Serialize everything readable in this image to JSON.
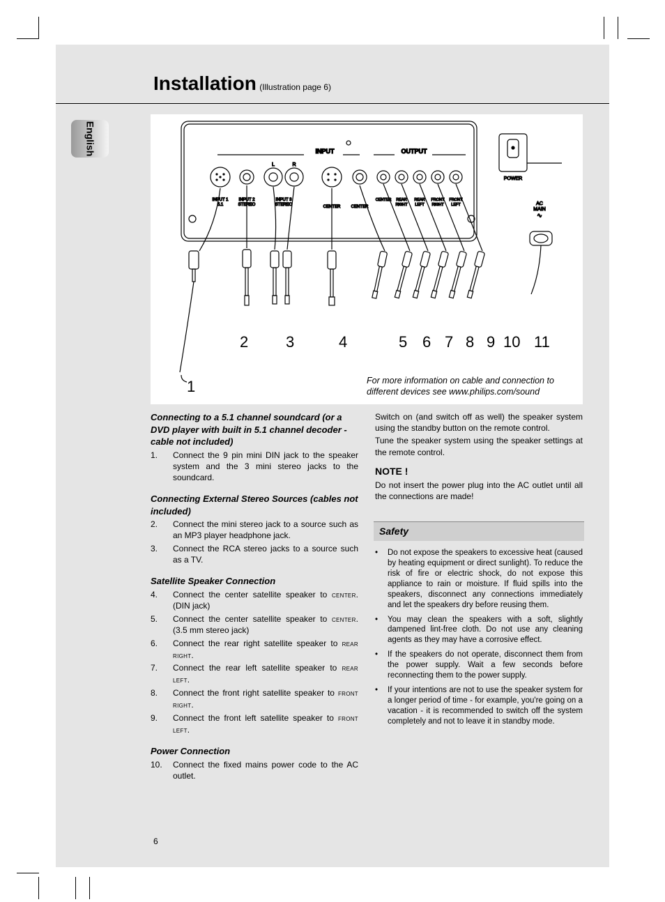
{
  "page": {
    "title_main": "Installation",
    "title_sub": "(Illustration page 6)",
    "language_tab": "English",
    "page_number": "6",
    "colors": {
      "page_bg": "#e5e5e5",
      "diagram_bg": "#ffffff",
      "safety_head_bg": "#cfcfcf",
      "text": "#000000"
    }
  },
  "diagram": {
    "labels": {
      "input": "INPUT",
      "output": "OUTPUT",
      "power": "POWER",
      "ac_main": "AC\nMAIN",
      "input1": "INPUT 1\n5.1",
      "input2": "INPUT 2\nSTEREO",
      "input3": "INPUT 3\nSTEREO",
      "center_l": "L",
      "center_r": "R",
      "center": "CENTER",
      "out_center": "CENTER",
      "out_rr": "REAR\nRIGHT",
      "out_rl": "REAR\nLEFT",
      "out_fr": "FRONT\nRIGHT",
      "out_fl": "FRONT\nLEFT"
    },
    "callouts": [
      "1",
      "2",
      "3",
      "4",
      "5",
      "6",
      "7",
      "8",
      "9",
      "10",
      "11"
    ],
    "note": "For more information on cable and connection to different devices see www.philips.com/sound"
  },
  "left_column": {
    "sec1_heading": "Connecting to a 5.1 channel soundcard (or a DVD player with built in 5.1 channel decoder - cable not included)",
    "sec1_items": [
      {
        "n": "1.",
        "t": "Connect the 9 pin mini DIN jack to the speaker system and the 3 mini stereo jacks to the soundcard."
      }
    ],
    "sec2_heading": "Connecting External Stereo Sources (cables not included)",
    "sec2_items": [
      {
        "n": "2.",
        "t": "Connect the mini stereo jack to a source such as an MP3 player headphone jack."
      },
      {
        "n": "3.",
        "t": "Connect the RCA stereo jacks to a source such as a TV."
      }
    ],
    "sec3_heading": "Satellite Speaker Connection",
    "sec3_items": [
      {
        "n": "4.",
        "t_pre": "Connect the center satellite speaker to ",
        "sc": "center",
        "t_post": ". (DIN jack)"
      },
      {
        "n": "5.",
        "t_pre": "Connect the center satellite speaker to ",
        "sc": "center",
        "t_post": ". (3.5 mm stereo jack)"
      },
      {
        "n": "6.",
        "t_pre": "Connect the rear right satellite speaker to ",
        "sc": "rear right",
        "t_post": "."
      },
      {
        "n": "7.",
        "t_pre": "Connect the rear left satellite speaker to ",
        "sc": "rear left",
        "t_post": "."
      },
      {
        "n": "8.",
        "t_pre": "Connect the front right satellite speaker to ",
        "sc": "front right",
        "t_post": "."
      },
      {
        "n": "9.",
        "t_pre": "Connect the front left satellite speaker to ",
        "sc": "front left",
        "t_post": "."
      }
    ],
    "sec4_heading": "Power Connection",
    "sec4_items": [
      {
        "n": "10.",
        "t": "Connect the fixed mains power code to the AC outlet."
      }
    ]
  },
  "right_column": {
    "intro_p1": "Switch on (and switch off as well) the speaker system using the standby button on the remote control.",
    "intro_p2": "Tune the speaker system using the speaker settings at the remote control.",
    "note_heading": "NOTE !",
    "note_body": "Do not insert the power plug into the AC outlet until all the connections are made!",
    "safety_heading": "Safety",
    "safety_items": [
      "Do not expose the speakers to excessive heat (caused by heating equipment or direct sunlight). To reduce the risk of fire or electric shock, do not expose this appliance to rain or moisture. If fluid spills into the speakers, disconnect any connections immediately and let the speakers dry before reusing them.",
      "You may clean the speakers with a soft, slightly dampened lint-free cloth. Do not use any cleaning agents as they may have a corrosive effect.",
      "If the speakers do not operate, disconnect them from the power supply. Wait a few seconds before reconnecting them to the power supply.",
      "If your intentions are not to use the speaker system for a longer period of time - for example, you're going on a vacation - it is recommended to switch off the system completely and not to leave it in standby mode."
    ]
  }
}
